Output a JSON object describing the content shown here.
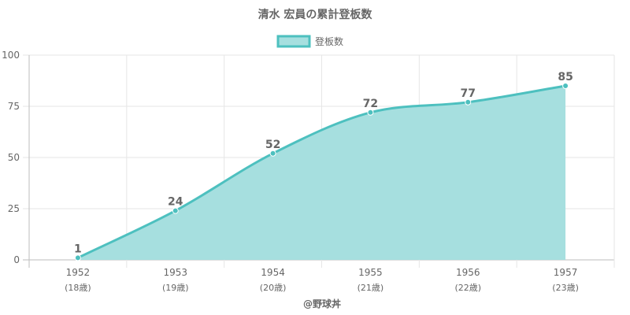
{
  "chart_data": {
    "type": "area",
    "title": "清水 宏員の累計登板数",
    "series": [
      {
        "name": "登板数",
        "values": [
          1,
          24,
          52,
          72,
          77,
          85
        ]
      }
    ],
    "categories": [
      "1952",
      "1953",
      "1954",
      "1955",
      "1956",
      "1957"
    ],
    "age_labels": [
      "(18歳)",
      "(19歳)",
      "(20歳)",
      "(21歳)",
      "(22歳)",
      "(23歳)"
    ],
    "y_ticks": [
      0,
      25,
      50,
      75,
      100
    ],
    "ylim": [
      0,
      100
    ],
    "grid": true,
    "legend_position": "top",
    "colors": {
      "line": "#4dc0bf",
      "fill": "#a6dfdf",
      "grid": "#e6e6e6",
      "axis": "#bdbdbd"
    }
  },
  "credit": "@野球丼"
}
